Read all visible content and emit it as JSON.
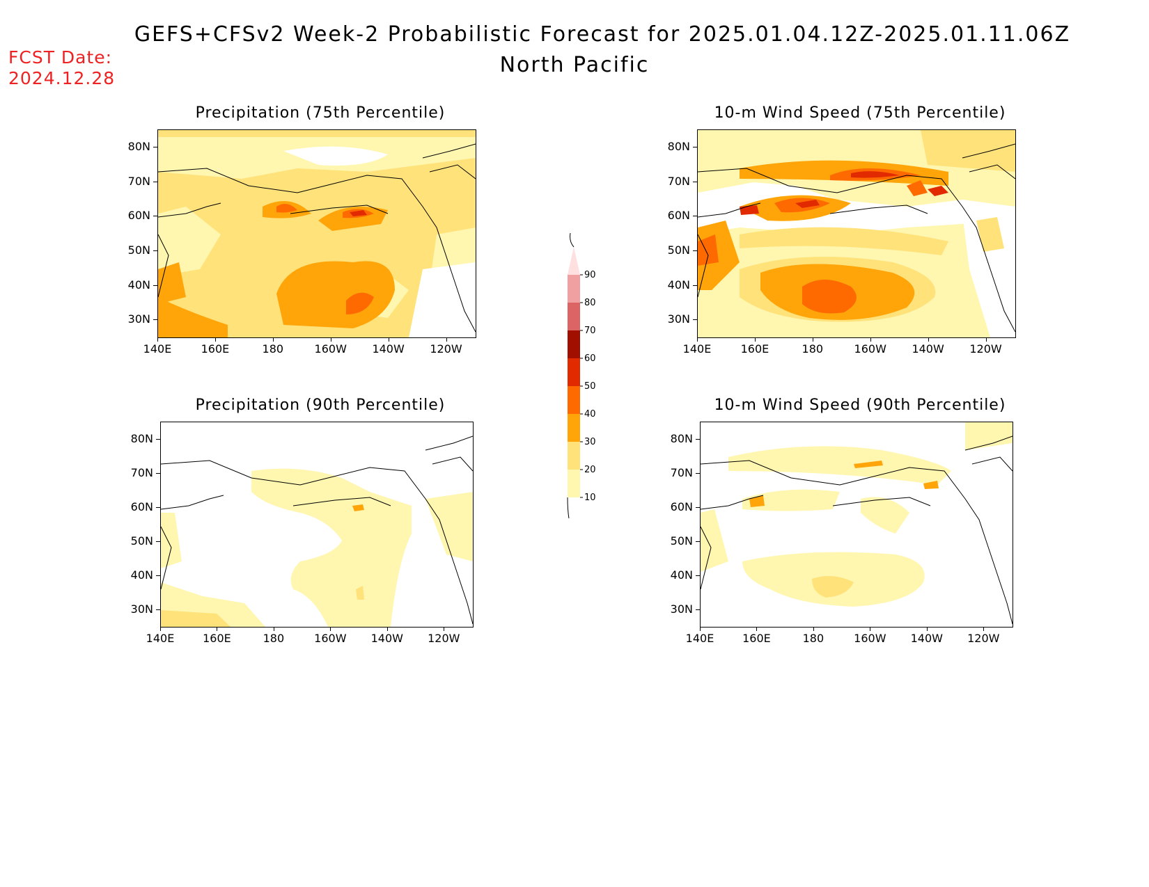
{
  "header": {
    "title": "GEFS+CFSv2 Week-2 Probabilistic Forecast for 2025.01.04.12Z-2025.01.11.06Z",
    "subtitle": "North Pacific",
    "fcst_label": "FCST Date:",
    "fcst_value": "2024.12.28"
  },
  "axes": {
    "lat_ticks": [
      "80N",
      "70N",
      "60N",
      "50N",
      "40N",
      "30N"
    ],
    "lon_ticks": [
      "140E",
      "160E",
      "180",
      "160W",
      "140W",
      "120W"
    ],
    "lat_range": [
      25,
      85
    ],
    "lon_range": [
      140,
      250
    ]
  },
  "colorbar": {
    "levels": [
      "10",
      "20",
      "30",
      "40",
      "50",
      "60",
      "70",
      "80",
      "90"
    ],
    "colors": [
      "#fff6b0",
      "#ffe27a",
      "#ffa50a",
      "#ff6a00",
      "#e12a00",
      "#a00f00",
      "#dc6464",
      "#f0a0a0",
      "#ffe0e0"
    ]
  },
  "panels": [
    {
      "id": "precip75",
      "title": "Precipitation (75th Percentile)"
    },
    {
      "id": "wind75",
      "title": "10-m Wind Speed (75th Percentile)"
    },
    {
      "id": "precip90",
      "title": "Precipitation (90th Percentile)"
    },
    {
      "id": "wind90",
      "title": "10-m Wind Speed (90th Percentile)"
    }
  ]
}
